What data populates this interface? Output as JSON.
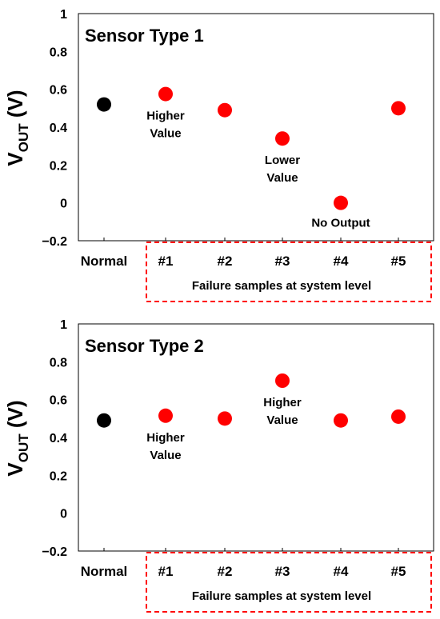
{
  "chart_data": [
    {
      "type": "scatter",
      "title": "Sensor Type 1",
      "ylabel_main": "V",
      "ylabel_sub": "OUT",
      "ylabel_unit": " (V)",
      "ylim": [
        -0.2,
        1
      ],
      "yticks": [
        "1",
        "0.8",
        "0.6",
        "0.4",
        "0.2",
        "0",
        "−0.2"
      ],
      "categories": [
        "Normal",
        "#1",
        "#2",
        "#3",
        "#4",
        "#5"
      ],
      "values": [
        0.52,
        0.575,
        0.49,
        0.34,
        0.0,
        0.5
      ],
      "colors": [
        "#000000",
        "#ff0000",
        "#ff0000",
        "#ff0000",
        "#ff0000",
        "#ff0000"
      ],
      "annotations": [
        {
          "index": 1,
          "lines": [
            "Higher",
            "Value"
          ]
        },
        {
          "index": 3,
          "lines": [
            "Lower",
            "Value"
          ]
        },
        {
          "index": 4,
          "lines": [
            "No Output"
          ]
        }
      ],
      "group_box_label": "Failure samples at system level",
      "group_box_color": "#ff0000"
    },
    {
      "type": "scatter",
      "title": "Sensor Type 2",
      "ylabel_main": "V",
      "ylabel_sub": "OUT",
      "ylabel_unit": " (V)",
      "ylim": [
        -0.2,
        1
      ],
      "yticks": [
        "1",
        "0.8",
        "0.6",
        "0.4",
        "0.2",
        "0",
        "−0.2"
      ],
      "categories": [
        "Normal",
        "#1",
        "#2",
        "#3",
        "#4",
        "#5"
      ],
      "values": [
        0.49,
        0.515,
        0.5,
        0.7,
        0.49,
        0.51
      ],
      "colors": [
        "#000000",
        "#ff0000",
        "#ff0000",
        "#ff0000",
        "#ff0000",
        "#ff0000"
      ],
      "annotations": [
        {
          "index": 1,
          "lines": [
            "Higher",
            "Value"
          ]
        },
        {
          "index": 3,
          "lines": [
            "Higher",
            "Value"
          ]
        }
      ],
      "group_box_label": "Failure samples at system level",
      "group_box_color": "#ff0000"
    }
  ]
}
